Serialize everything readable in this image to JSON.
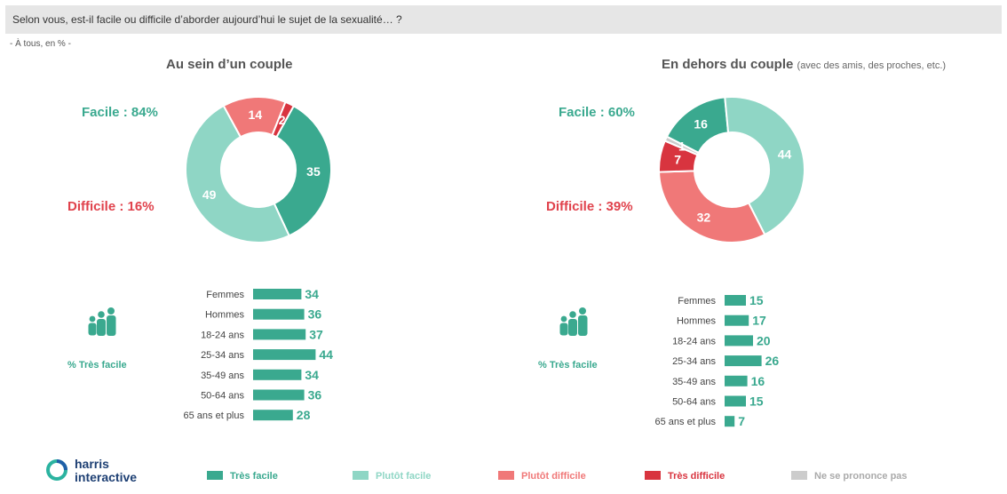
{
  "question": "Selon vous, est-il facile ou difficile d’aborder aujourd’hui le sujet de la sexualité… ?",
  "basis": "- À tous, en % -",
  "colors": {
    "tres_facile": "#3aa98f",
    "plutot_facile": "#8fd6c5",
    "plutot_difficile": "#f07878",
    "tres_difficile": "#d8343f",
    "nspp": "#cccccc"
  },
  "panels": [
    {
      "title": "Au sein d’un couple",
      "subtitle": "",
      "facile_label": "Facile : 84%",
      "difficile_label": "Difficile : 16%",
      "tres_facile_label": "% Très facile"
    },
    {
      "title": "En dehors du couple",
      "subtitle": "(avec des amis, des proches, etc.)",
      "facile_label": "Facile : 60%",
      "difficile_label": "Difficile : 39%",
      "tres_facile_label": "% Très facile"
    }
  ],
  "legend": [
    "Très facile",
    "Plutôt facile",
    "Plutôt difficile",
    "Très difficile",
    "Ne se prononce pas"
  ],
  "logo": {
    "line1": "harris",
    "line2": "interactive"
  },
  "chart_data": [
    {
      "type": "pie",
      "title": "Au sein d’un couple",
      "categories": [
        "Très facile",
        "Plutôt facile",
        "Plutôt difficile",
        "Très difficile",
        "Ne se prononce pas"
      ],
      "values": [
        35,
        49,
        14,
        2,
        0
      ]
    },
    {
      "type": "bar",
      "title": "% Très facile",
      "categories": [
        "Femmes",
        "Hommes",
        "18-24 ans",
        "25-34 ans",
        "35-49 ans",
        "50-64 ans",
        "65 ans et plus"
      ],
      "values": [
        34,
        36,
        37,
        44,
        34,
        36,
        28
      ]
    },
    {
      "type": "pie",
      "title": "En dehors du couple",
      "categories": [
        "Très facile",
        "Plutôt facile",
        "Plutôt difficile",
        "Très difficile",
        "Ne se prononce pas"
      ],
      "values": [
        16,
        44,
        32,
        7,
        1
      ]
    },
    {
      "type": "bar",
      "title": "% Très facile",
      "categories": [
        "Femmes",
        "Hommes",
        "18-24 ans",
        "25-34 ans",
        "35-49 ans",
        "50-64 ans",
        "65 ans et plus"
      ],
      "values": [
        15,
        17,
        20,
        26,
        16,
        15,
        7
      ]
    }
  ]
}
